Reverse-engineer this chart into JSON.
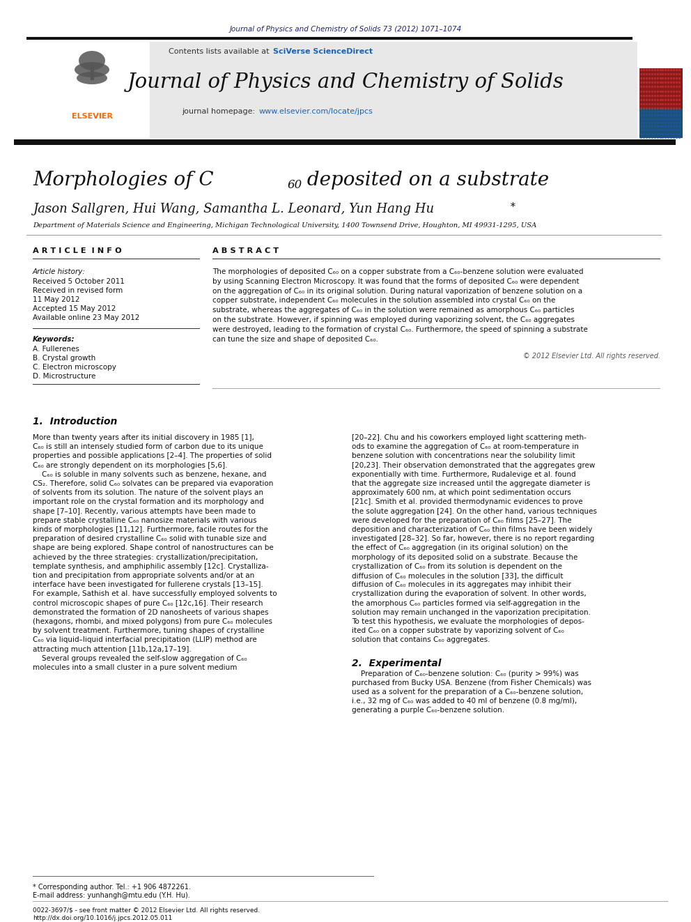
{
  "fig_width": 9.92,
  "fig_height": 13.23,
  "bg_color": "#ffffff",
  "journal_ref": "Journal of Physics and Chemistry of Solids 73 (2012) 1071–1074",
  "journal_ref_color": "#1a237e",
  "journal_name": "Journal of Physics and Chemistry of Solids",
  "header_bg": "#e8e8e8",
  "sciverse_color": "#1565c0",
  "homepage_url": "www.elsevier.com/locate/jpcs",
  "homepage_url_color": "#1565c0",
  "elsevier_color": "#ff6600",
  "affiliation": "Department of Materials Science and Engineering, Michigan Technological University, 1400 Townsend Drive, Houghton, MI 49931-1295, USA",
  "article_history": [
    "Received 5 October 2011",
    "Received in revised form",
    "11 May 2012",
    "Accepted 15 May 2012",
    "Available online 23 May 2012"
  ],
  "keywords": [
    "A. Fullerenes",
    "B. Crystal growth",
    "C. Electron microscopy",
    "D. Microstructure"
  ],
  "copyright": "© 2012 Elsevier Ltd. All rights reserved.",
  "footnote_star": "* Corresponding author. Tel.: +1 906 4872261.",
  "footnote_email": "E-mail address: yunhangh@mtu.edu (Y.H. Hu).",
  "footnote_issn": "0022-3697/$ - see front matter © 2012 Elsevier Ltd. All rights reserved.",
  "footnote_doi": "http://dx.doi.org/10.1016/j.jpcs.2012.05.011"
}
